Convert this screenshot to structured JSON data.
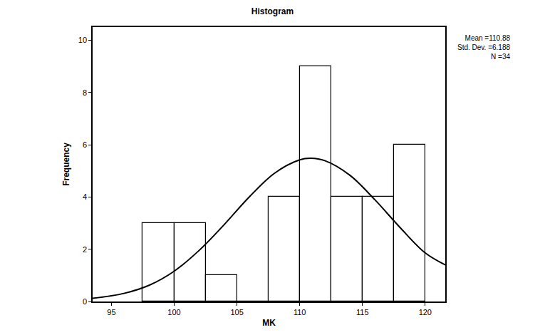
{
  "chart_data": {
    "type": "histogram",
    "title": "Histogram",
    "x_label": "MK",
    "y_label": "Frequency",
    "bins": [
      97.5,
      100,
      102.5,
      105,
      107.5,
      110,
      112.5,
      115,
      117.5,
      120
    ],
    "values": [
      3,
      3,
      1,
      0,
      4,
      9,
      4,
      4,
      6
    ],
    "color": "#ffffff",
    "curve": {
      "x": [
        93.5,
        96,
        98,
        100,
        102,
        104,
        106,
        108,
        110,
        110.88,
        112,
        114,
        116,
        118,
        120,
        121.6
      ],
      "values": [
        0.12,
        0.31,
        0.62,
        1.16,
        1.96,
        2.95,
        4.01,
        4.91,
        5.42,
        5.48,
        5.39,
        4.83,
        3.89,
        2.83,
        1.86,
        1.4
      ],
      "color": "#000000",
      "line_style": "solid"
    },
    "annotations": [
      "Mean =110.88",
      "Std. Dev. =6.188",
      "N =34"
    ],
    "xlim": [
      93.5,
      121.6
    ],
    "xticks": [
      95,
      100,
      105,
      110,
      115,
      120
    ],
    "ylim": [
      0,
      10.5
    ],
    "yticks": [
      0,
      2,
      4,
      6,
      8,
      10
    ],
    "grid": false
  }
}
